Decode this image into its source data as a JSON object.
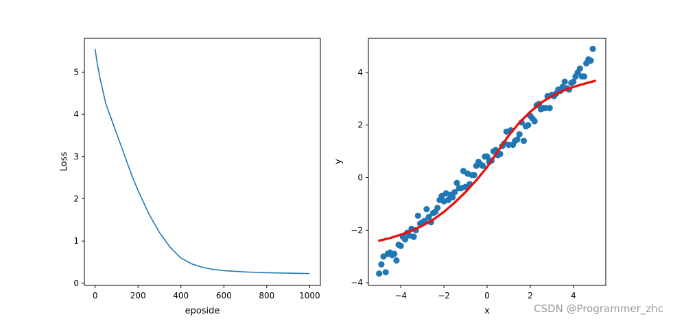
{
  "watermark": "CSDN @Programmer_zhc",
  "chart_data": [
    {
      "type": "line",
      "xlabel": "eposide",
      "ylabel": "Loss",
      "xlim": [
        -50,
        1050
      ],
      "ylim": [
        -0.05,
        5.8
      ],
      "xticks": [
        0,
        200,
        400,
        600,
        800,
        1000
      ],
      "yticks": [
        0,
        1,
        2,
        3,
        4,
        5
      ],
      "grid": false,
      "series": [
        {
          "color": "#1f77b4",
          "x": [
            0,
            10,
            25,
            50,
            75,
            100,
            125,
            150,
            175,
            200,
            250,
            300,
            350,
            400,
            450,
            500,
            550,
            600,
            700,
            800,
            900,
            1000
          ],
          "y": [
            5.55,
            5.2,
            4.8,
            4.25,
            3.9,
            3.55,
            3.2,
            2.85,
            2.5,
            2.2,
            1.65,
            1.2,
            0.85,
            0.6,
            0.46,
            0.38,
            0.33,
            0.3,
            0.27,
            0.25,
            0.24,
            0.23
          ]
        }
      ]
    },
    {
      "type": "scatter",
      "xlabel": "x",
      "ylabel": "y",
      "xlim": [
        -5.5,
        5.5
      ],
      "ylim": [
        -4.1,
        5.3
      ],
      "xticks": [
        -4,
        -2,
        0,
        2,
        4
      ],
      "yticks": [
        -4,
        -2,
        0,
        2,
        4
      ],
      "grid": false,
      "scatter_color": "#1f77b4",
      "line_color": "#e8120f",
      "points": [
        [
          -5.0,
          -3.65
        ],
        [
          -4.9,
          -3.3
        ],
        [
          -4.8,
          -3.0
        ],
        [
          -4.7,
          -3.6
        ],
        [
          -4.6,
          -2.9
        ],
        [
          -4.5,
          -2.85
        ],
        [
          -4.4,
          -2.95
        ],
        [
          -4.3,
          -2.9
        ],
        [
          -4.2,
          -3.15
        ],
        [
          -4.1,
          -2.55
        ],
        [
          -4.0,
          -2.6
        ],
        [
          -3.9,
          -2.25
        ],
        [
          -3.8,
          -2.35
        ],
        [
          -3.7,
          -2.1
        ],
        [
          -3.6,
          -2.2
        ],
        [
          -3.5,
          -1.95
        ],
        [
          -3.4,
          -2.25
        ],
        [
          -3.3,
          -2.0
        ],
        [
          -3.2,
          -1.45
        ],
        [
          -3.1,
          -1.75
        ],
        [
          -3.0,
          -1.7
        ],
        [
          -2.9,
          -1.65
        ],
        [
          -2.8,
          -1.2
        ],
        [
          -2.7,
          -1.5
        ],
        [
          -2.6,
          -1.7
        ],
        [
          -2.5,
          -1.35
        ],
        [
          -2.4,
          -1.3
        ],
        [
          -2.3,
          -1.15
        ],
        [
          -2.2,
          -0.85
        ],
        [
          -2.1,
          -0.7
        ],
        [
          -2.0,
          -0.9
        ],
        [
          -1.9,
          -0.6
        ],
        [
          -1.8,
          -0.85
        ],
        [
          -1.7,
          -0.65
        ],
        [
          -1.6,
          -0.75
        ],
        [
          -1.5,
          -0.55
        ],
        [
          -1.4,
          -0.2
        ],
        [
          -1.3,
          -0.4
        ],
        [
          -1.2,
          -0.4
        ],
        [
          -1.1,
          0.25
        ],
        [
          -1.0,
          -0.35
        ],
        [
          -0.9,
          0.15
        ],
        [
          -0.8,
          -0.25
        ],
        [
          -0.7,
          0.1
        ],
        [
          -0.6,
          0.1
        ],
        [
          -0.5,
          0.45
        ],
        [
          -0.4,
          0.6
        ],
        [
          -0.3,
          0.5
        ],
        [
          -0.2,
          0.45
        ],
        [
          -0.1,
          0.8
        ],
        [
          0.0,
          0.8
        ],
        [
          0.1,
          0.6
        ],
        [
          0.2,
          0.65
        ],
        [
          0.3,
          1.0
        ],
        [
          0.4,
          1.05
        ],
        [
          0.5,
          0.85
        ],
        [
          0.6,
          0.9
        ],
        [
          0.7,
          1.2
        ],
        [
          0.8,
          1.3
        ],
        [
          0.9,
          1.75
        ],
        [
          1.0,
          1.25
        ],
        [
          1.1,
          1.8
        ],
        [
          1.2,
          1.25
        ],
        [
          1.3,
          1.4
        ],
        [
          1.4,
          1.45
        ],
        [
          1.5,
          1.65
        ],
        [
          1.6,
          2.1
        ],
        [
          1.7,
          1.4
        ],
        [
          1.8,
          1.95
        ],
        [
          1.9,
          2.0
        ],
        [
          2.0,
          2.35
        ],
        [
          2.1,
          2.25
        ],
        [
          2.2,
          2.15
        ],
        [
          2.3,
          2.75
        ],
        [
          2.4,
          2.8
        ],
        [
          2.5,
          2.6
        ],
        [
          2.6,
          2.65
        ],
        [
          2.7,
          2.65
        ],
        [
          2.8,
          3.1
        ],
        [
          2.9,
          2.65
        ],
        [
          3.0,
          3.15
        ],
        [
          3.1,
          3.1
        ],
        [
          3.2,
          3.2
        ],
        [
          3.3,
          3.35
        ],
        [
          3.4,
          3.3
        ],
        [
          3.5,
          3.45
        ],
        [
          3.6,
          3.65
        ],
        [
          3.7,
          3.4
        ],
        [
          3.8,
          3.35
        ],
        [
          3.9,
          3.6
        ],
        [
          4.0,
          3.65
        ],
        [
          4.1,
          3.85
        ],
        [
          4.2,
          4.0
        ],
        [
          4.3,
          4.15
        ],
        [
          4.4,
          3.85
        ],
        [
          4.5,
          3.85
        ],
        [
          4.6,
          4.35
        ],
        [
          4.7,
          4.5
        ],
        [
          4.8,
          4.45
        ],
        [
          4.9,
          4.9
        ]
      ],
      "fit_line": {
        "x": [
          -5.0,
          -4.5,
          -4.0,
          -3.5,
          -3.0,
          -2.5,
          -2.0,
          -1.5,
          -1.0,
          -0.5,
          0.0,
          0.5,
          1.0,
          1.5,
          2.0,
          2.5,
          3.0,
          3.5,
          4.0,
          4.5,
          5.0
        ],
        "y": [
          -2.4,
          -2.3,
          -2.17,
          -2.02,
          -1.83,
          -1.6,
          -1.3,
          -0.95,
          -0.55,
          -0.1,
          0.4,
          1.0,
          1.6,
          2.1,
          2.5,
          2.85,
          3.1,
          3.3,
          3.45,
          3.57,
          3.68
        ]
      }
    }
  ]
}
